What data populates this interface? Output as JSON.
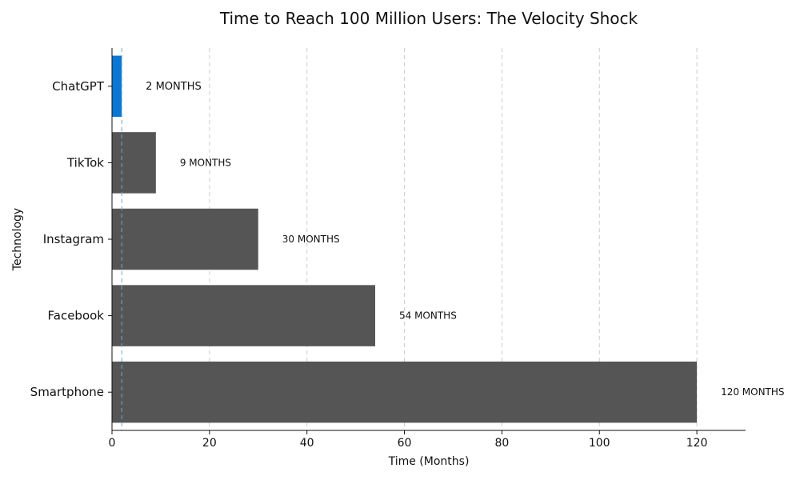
{
  "chart_data": {
    "type": "bar",
    "orientation": "horizontal",
    "title": "Time to Reach 100 Million Users: The Velocity Shock",
    "xlabel": "Time (Months)",
    "ylabel": "Technology",
    "categories": [
      "Smartphone",
      "Facebook",
      "Instagram",
      "TikTok",
      "ChatGPT"
    ],
    "values": [
      120,
      54,
      30,
      9,
      2
    ],
    "data_labels": [
      "120 MONTHS",
      "54 MONTHS",
      "30 MONTHS",
      "9 MONTHS",
      "2 MONTHS"
    ],
    "highlight_category": "ChatGPT",
    "reference_line_x": 2,
    "xlim": [
      0,
      130
    ],
    "xticks": [
      0,
      20,
      40,
      60,
      80,
      100,
      120
    ],
    "grid": "vertical-dashed",
    "colors": {
      "default_bar": "#555555",
      "highlight_bar": "#0a77d4",
      "highlight_label": "#0a77d4",
      "grid": "#cccccc",
      "reference_line": "#6aa6d6",
      "axis": "#111111"
    }
  }
}
